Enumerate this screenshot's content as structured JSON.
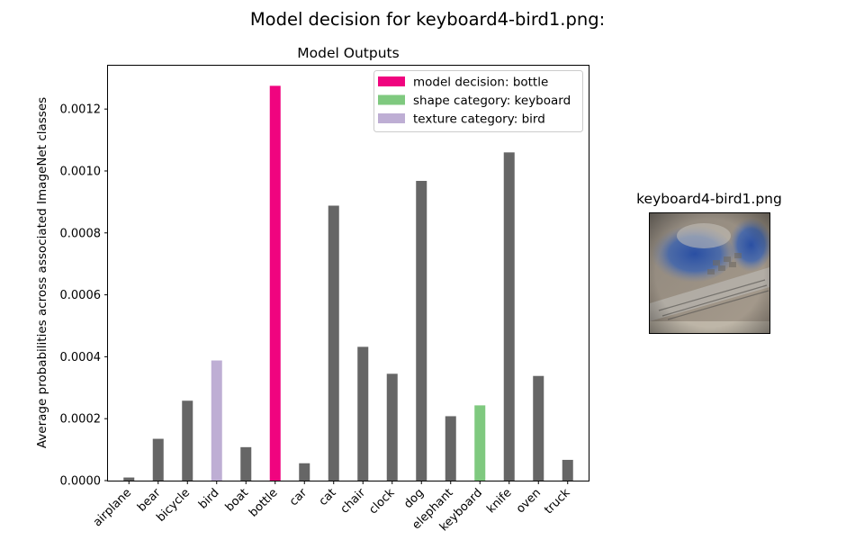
{
  "figure": {
    "suptitle": "Model decision for keyboard4-bird1.png:",
    "image_title": "keyboard4-bird1.png"
  },
  "chart_data": {
    "type": "bar",
    "title": "Model Outputs",
    "xlabel": "",
    "ylabel": "Average probabilities across associated ImageNet classes",
    "categories": [
      "airplane",
      "bear",
      "bicycle",
      "bird",
      "boat",
      "bottle",
      "car",
      "cat",
      "chair",
      "clock",
      "dog",
      "elephant",
      "keyboard",
      "knife",
      "oven",
      "truck"
    ],
    "values": [
      1e-05,
      0.000135,
      0.000258,
      0.000388,
      0.000108,
      0.001275,
      5.6e-05,
      0.000888,
      0.000432,
      0.000345,
      0.000968,
      0.000208,
      0.000243,
      0.00106,
      0.000338,
      6.7e-05
    ],
    "ylim": [
      0,
      0.00134
    ],
    "yticks": [
      0,
      0.0002,
      0.0004,
      0.0006,
      0.0008,
      0.001,
      0.0012
    ],
    "ytick_labels": [
      "0.0000",
      "0.0002",
      "0.0004",
      "0.0006",
      "0.0008",
      "0.0010",
      "0.0012"
    ],
    "colors": {
      "default": "#666666",
      "decision": "#f0047f",
      "shape": "#7fc97f",
      "texture": "#beaed4"
    },
    "highlights": {
      "bottle": "decision",
      "keyboard": "shape",
      "bird": "texture"
    },
    "legend": {
      "position": "top-right",
      "entries": [
        {
          "label": "model decision: bottle",
          "color": "#f0047f"
        },
        {
          "label": "shape category: keyboard",
          "color": "#7fc97f"
        },
        {
          "label": "texture category: bird",
          "color": "#beaed4"
        }
      ]
    },
    "grid": false
  }
}
